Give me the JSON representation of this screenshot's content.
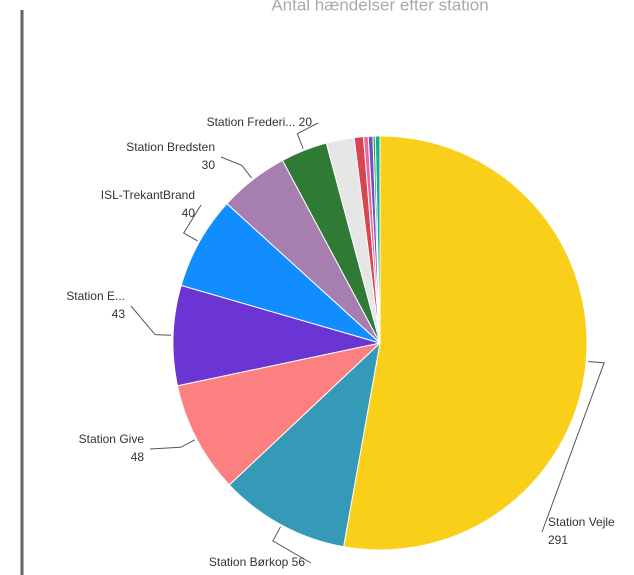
{
  "chart_data": {
    "type": "pie",
    "title": "Antal hændelser efter station",
    "categories": [
      "Station Vejle",
      "Station Børkop",
      "Station Give",
      "Station E...",
      "ISL-TrekantBrand",
      "Station Bredsten",
      "Station Frederi...",
      null,
      null,
      null,
      null,
      null,
      null
    ],
    "values": [
      291,
      56,
      48,
      43,
      40,
      30,
      20,
      12,
      4,
      2,
      2,
      1,
      2
    ],
    "colors": [
      "#F9CF1A",
      "#3599B8",
      "#FD8080",
      "#6B35D3",
      "#118DFF",
      "#A67FB0",
      "#2F7A34",
      "#E6E6E6",
      "#D64550",
      "#E66C9C",
      "#744EC2",
      "#1AAB40",
      "#1AAB98"
    ]
  }
}
